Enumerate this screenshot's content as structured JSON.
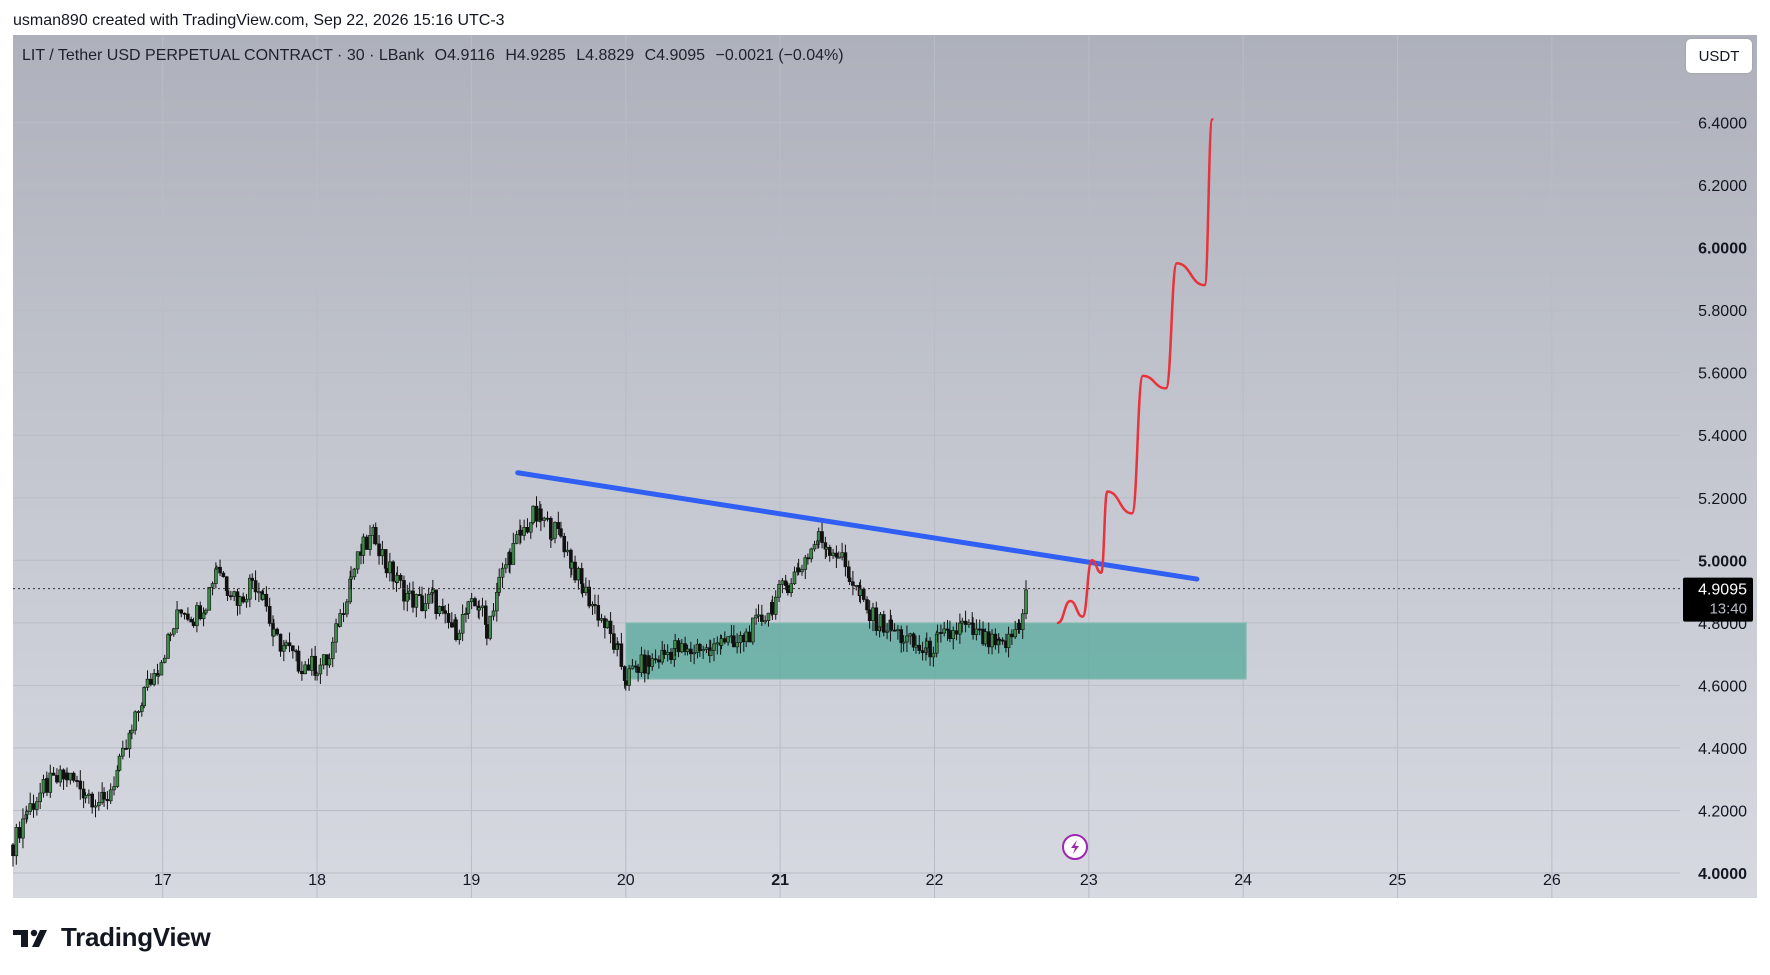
{
  "caption": "usman890 created with TradingView.com, Sep 22, 2026 15:16 UTC-3",
  "legend": {
    "symbol": "LIT / Tether USD PERPETUAL CONTRACT · 30 · LBank",
    "open": "O4.9116",
    "high": "H4.9285",
    "low": "L4.8829",
    "close": "C4.9095",
    "change": "−0.0021 (−0.04%)"
  },
  "currency_button": "USDT",
  "price_label": {
    "price": "4.9095",
    "countdown": "13:40"
  },
  "brand": "TradingView",
  "chart_data": {
    "type": "candlestick",
    "y_ticks": [
      "6.4000",
      "6.2000",
      "6.0000",
      "5.8000",
      "5.6000",
      "5.4000",
      "5.2000",
      "5.0000",
      "4.8000",
      "4.6000",
      "4.4000",
      "4.2000",
      "4.0000"
    ],
    "y_ticks_bold": [
      "6.0000",
      "5.0000",
      "4.0000"
    ],
    "x_ticks": [
      "17",
      "18",
      "19",
      "20",
      "21",
      "22",
      "23",
      "24",
      "25",
      "26"
    ],
    "x_ticks_bold": [
      "21"
    ],
    "ylim": [
      3.92,
      6.68
    ],
    "xlim": [
      16.03,
      26.83
    ],
    "current_price": 4.9095,
    "price_path": [
      [
        16.03,
        4.09
      ],
      [
        16.12,
        4.2
      ],
      [
        16.25,
        4.28
      ],
      [
        16.38,
        4.31
      ],
      [
        16.5,
        4.26
      ],
      [
        16.62,
        4.22
      ],
      [
        16.72,
        4.34
      ],
      [
        16.8,
        4.45
      ],
      [
        16.88,
        4.58
      ],
      [
        16.97,
        4.66
      ],
      [
        17.05,
        4.76
      ],
      [
        17.12,
        4.85
      ],
      [
        17.2,
        4.82
      ],
      [
        17.28,
        4.87
      ],
      [
        17.35,
        4.99
      ],
      [
        17.42,
        4.92
      ],
      [
        17.5,
        4.87
      ],
      [
        17.58,
        4.94
      ],
      [
        17.65,
        4.9
      ],
      [
        17.72,
        4.75
      ],
      [
        17.8,
        4.72
      ],
      [
        17.88,
        4.67
      ],
      [
        18.0,
        4.66
      ],
      [
        18.08,
        4.68
      ],
      [
        18.15,
        4.82
      ],
      [
        18.22,
        4.95
      ],
      [
        18.3,
        5.04
      ],
      [
        18.38,
        5.08
      ],
      [
        18.45,
        4.98
      ],
      [
        18.52,
        4.93
      ],
      [
        18.6,
        4.88
      ],
      [
        18.68,
        4.86
      ],
      [
        18.75,
        4.88
      ],
      [
        18.83,
        4.8
      ],
      [
        18.9,
        4.78
      ],
      [
        18.98,
        4.84
      ],
      [
        19.05,
        4.86
      ],
      [
        19.1,
        4.78
      ],
      [
        19.18,
        4.93
      ],
      [
        19.25,
        5.02
      ],
      [
        19.32,
        5.08
      ],
      [
        19.4,
        5.14
      ],
      [
        19.45,
        5.13
      ],
      [
        19.52,
        5.1
      ],
      [
        19.58,
        5.08
      ],
      [
        19.65,
        4.99
      ],
      [
        19.72,
        4.91
      ],
      [
        19.8,
        4.85
      ],
      [
        19.88,
        4.78
      ],
      [
        19.95,
        4.7
      ],
      [
        20.0,
        4.62
      ],
      [
        20.08,
        4.66
      ],
      [
        20.15,
        4.67
      ],
      [
        20.25,
        4.7
      ],
      [
        20.32,
        4.72
      ],
      [
        20.4,
        4.7
      ],
      [
        20.48,
        4.73
      ],
      [
        20.55,
        4.7
      ],
      [
        20.62,
        4.76
      ],
      [
        20.7,
        4.72
      ],
      [
        20.78,
        4.76
      ],
      [
        20.86,
        4.8
      ],
      [
        20.95,
        4.86
      ],
      [
        21.05,
        4.93
      ],
      [
        21.12,
        4.97
      ],
      [
        21.18,
        5.02
      ],
      [
        21.25,
        5.07
      ],
      [
        21.3,
        5.05
      ],
      [
        21.38,
        5.02
      ],
      [
        21.45,
        4.95
      ],
      [
        21.52,
        4.88
      ],
      [
        21.58,
        4.82
      ],
      [
        21.65,
        4.8
      ],
      [
        21.72,
        4.78
      ],
      [
        21.8,
        4.75
      ],
      [
        21.88,
        4.72
      ],
      [
        21.95,
        4.71
      ],
      [
        22.02,
        4.74
      ],
      [
        22.1,
        4.76
      ],
      [
        22.18,
        4.79
      ],
      [
        22.25,
        4.77
      ],
      [
        22.33,
        4.74
      ],
      [
        22.42,
        4.72
      ],
      [
        22.48,
        4.74
      ],
      [
        22.55,
        4.8
      ],
      [
        22.6,
        4.91
      ]
    ],
    "drawings": {
      "trendline": {
        "from": [
          19.3,
          5.28
        ],
        "to": [
          23.7,
          4.94
        ],
        "color": "#2f5ff3"
      },
      "demand_zone": {
        "x": [
          20.0,
          24.02
        ],
        "y": [
          4.62,
          4.8
        ],
        "color": "#5bab9f"
      },
      "projection_path": [
        [
          22.8,
          4.8
        ],
        [
          22.88,
          4.87
        ],
        [
          22.96,
          4.82
        ],
        [
          23.02,
          5.0
        ],
        [
          23.08,
          4.96
        ],
        [
          23.12,
          5.22
        ],
        [
          23.28,
          5.15
        ],
        [
          23.35,
          5.59
        ],
        [
          23.5,
          5.55
        ],
        [
          23.57,
          5.95
        ],
        [
          23.75,
          5.88
        ],
        [
          23.8,
          6.41
        ]
      ],
      "projection_color": "#e8323c"
    },
    "colors": {
      "candle_up": "#3f8a4a",
      "candle_down": "#111111"
    }
  }
}
